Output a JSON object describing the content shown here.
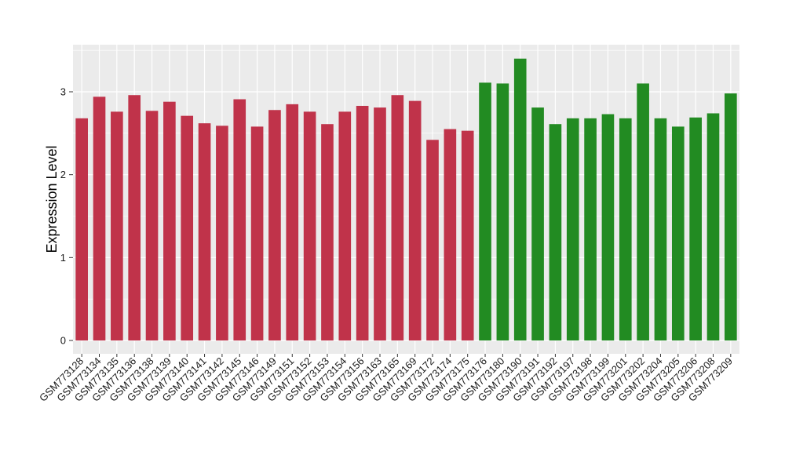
{
  "chart_data": {
    "type": "bar",
    "title": "",
    "xlabel": "",
    "ylabel": "Expression Level",
    "ylim": [
      -0.15,
      3.55
    ],
    "yticks": [
      0,
      1,
      2,
      3
    ],
    "ytick_labels": [
      "0",
      "1",
      "2",
      "3"
    ],
    "grid": true,
    "legend": "none",
    "panel_color": "#EBEBEB",
    "grid_color": "#FFFFFF",
    "categories": [
      "GSM773128",
      "GSM773134",
      "GSM773135",
      "GSM773136",
      "GSM773138",
      "GSM773139",
      "GSM773140",
      "GSM773141",
      "GSM773142",
      "GSM773145",
      "GSM773146",
      "GSM773149",
      "GSM773151",
      "GSM773152",
      "GSM773153",
      "GSM773154",
      "GSM773156",
      "GSM773163",
      "GSM773165",
      "GSM773169",
      "GSM773172",
      "GSM773174",
      "GSM773175",
      "GSM773176",
      "GSM773180",
      "GSM773190",
      "GSM773191",
      "GSM773192",
      "GSM773197",
      "GSM773198",
      "GSM773199",
      "GSM773201",
      "GSM773202",
      "GSM773204",
      "GSM773205",
      "GSM773206",
      "GSM773208",
      "GSM773209"
    ],
    "values": [
      2.68,
      2.94,
      2.76,
      2.96,
      2.77,
      2.88,
      2.71,
      2.62,
      2.59,
      2.91,
      2.58,
      2.78,
      2.85,
      2.76,
      2.61,
      2.76,
      2.83,
      2.81,
      2.96,
      2.89,
      2.42,
      2.55,
      2.53,
      3.11,
      3.1,
      3.4,
      2.81,
      2.61,
      2.68,
      2.68,
      2.73,
      2.68,
      3.1,
      2.68,
      2.58,
      2.69,
      2.74,
      2.98
    ],
    "groups": [
      "a",
      "a",
      "a",
      "a",
      "a",
      "a",
      "a",
      "a",
      "a",
      "a",
      "a",
      "a",
      "a",
      "a",
      "a",
      "a",
      "a",
      "a",
      "a",
      "a",
      "a",
      "a",
      "a",
      "b",
      "b",
      "b",
      "b",
      "b",
      "b",
      "b",
      "b",
      "b",
      "b",
      "b",
      "b",
      "b",
      "b",
      "b"
    ],
    "group_colors": {
      "a": "#C0334A",
      "b": "#228B22"
    }
  }
}
